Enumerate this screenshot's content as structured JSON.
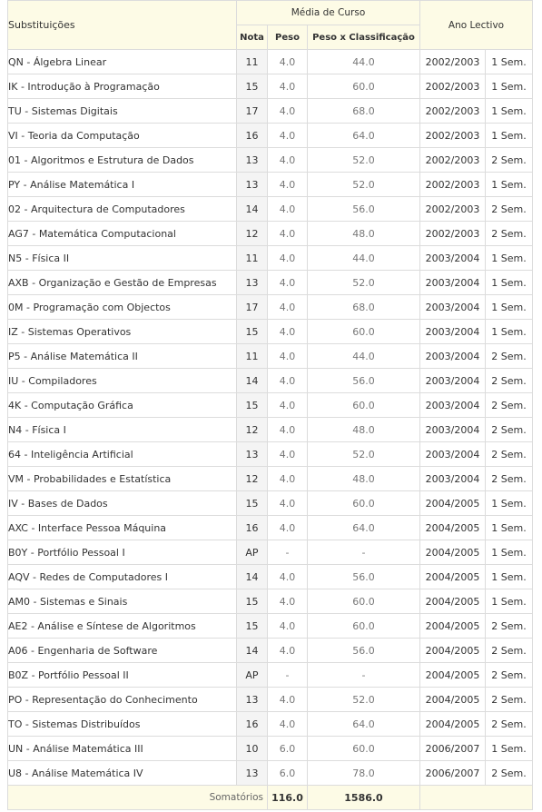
{
  "header": {
    "subjects": "Substituições",
    "course_avg": "Média de Curso",
    "grade": "Nota",
    "weight": "Peso",
    "weighted": "Peso x Classificação",
    "year": "Ano Lectivo"
  },
  "rows": [
    {
      "name": "QN - Álgebra Linear",
      "grade": "11",
      "weight": "4.0",
      "weighted": "44.0",
      "year": "2002/2003",
      "sem": "1 Sem."
    },
    {
      "name": "IK - Introdução à Programação",
      "grade": "15",
      "weight": "4.0",
      "weighted": "60.0",
      "year": "2002/2003",
      "sem": "1 Sem."
    },
    {
      "name": "TU - Sistemas Digitais",
      "grade": "17",
      "weight": "4.0",
      "weighted": "68.0",
      "year": "2002/2003",
      "sem": "1 Sem."
    },
    {
      "name": "VI - Teoria da Computação",
      "grade": "16",
      "weight": "4.0",
      "weighted": "64.0",
      "year": "2002/2003",
      "sem": "1 Sem."
    },
    {
      "name": "01 - Algoritmos e Estrutura de Dados",
      "grade": "13",
      "weight": "4.0",
      "weighted": "52.0",
      "year": "2002/2003",
      "sem": "2 Sem."
    },
    {
      "name": "PY - Análise Matemática I",
      "grade": "13",
      "weight": "4.0",
      "weighted": "52.0",
      "year": "2002/2003",
      "sem": "1 Sem."
    },
    {
      "name": "02 - Arquitectura de Computadores",
      "grade": "14",
      "weight": "4.0",
      "weighted": "56.0",
      "year": "2002/2003",
      "sem": "2 Sem."
    },
    {
      "name": "AG7 - Matemática Computacional",
      "grade": "12",
      "weight": "4.0",
      "weighted": "48.0",
      "year": "2002/2003",
      "sem": "2 Sem."
    },
    {
      "name": "N5 - Física II",
      "grade": "11",
      "weight": "4.0",
      "weighted": "44.0",
      "year": "2003/2004",
      "sem": "1 Sem."
    },
    {
      "name": "AXB - Organização e Gestão de Empresas",
      "grade": "13",
      "weight": "4.0",
      "weighted": "52.0",
      "year": "2003/2004",
      "sem": "1 Sem."
    },
    {
      "name": "0M - Programação com Objectos",
      "grade": "17",
      "weight": "4.0",
      "weighted": "68.0",
      "year": "2003/2004",
      "sem": "1 Sem."
    },
    {
      "name": "IZ - Sistemas Operativos",
      "grade": "15",
      "weight": "4.0",
      "weighted": "60.0",
      "year": "2003/2004",
      "sem": "1 Sem."
    },
    {
      "name": "P5 - Análise Matemática II",
      "grade": "11",
      "weight": "4.0",
      "weighted": "44.0",
      "year": "2003/2004",
      "sem": "2 Sem."
    },
    {
      "name": "IU - Compiladores",
      "grade": "14",
      "weight": "4.0",
      "weighted": "56.0",
      "year": "2003/2004",
      "sem": "2 Sem."
    },
    {
      "name": "4K - Computação Gráfica",
      "grade": "15",
      "weight": "4.0",
      "weighted": "60.0",
      "year": "2003/2004",
      "sem": "2 Sem."
    },
    {
      "name": "N4 - Física I",
      "grade": "12",
      "weight": "4.0",
      "weighted": "48.0",
      "year": "2003/2004",
      "sem": "2 Sem."
    },
    {
      "name": "64 - Inteligência Artificial",
      "grade": "13",
      "weight": "4.0",
      "weighted": "52.0",
      "year": "2003/2004",
      "sem": "2 Sem."
    },
    {
      "name": "VM - Probabilidades e Estatística",
      "grade": "12",
      "weight": "4.0",
      "weighted": "48.0",
      "year": "2003/2004",
      "sem": "2 Sem."
    },
    {
      "name": "IV - Bases de Dados",
      "grade": "15",
      "weight": "4.0",
      "weighted": "60.0",
      "year": "2004/2005",
      "sem": "1 Sem."
    },
    {
      "name": "AXC - Interface Pessoa Máquina",
      "grade": "16",
      "weight": "4.0",
      "weighted": "64.0",
      "year": "2004/2005",
      "sem": "1 Sem."
    },
    {
      "name": "B0Y - Portfólio Pessoal I",
      "grade": "AP",
      "weight": "-",
      "weighted": "-",
      "year": "2004/2005",
      "sem": "1 Sem."
    },
    {
      "name": "AQV - Redes de Computadores I",
      "grade": "14",
      "weight": "4.0",
      "weighted": "56.0",
      "year": "2004/2005",
      "sem": "1 Sem."
    },
    {
      "name": "AM0 - Sistemas e Sinais",
      "grade": "15",
      "weight": "4.0",
      "weighted": "60.0",
      "year": "2004/2005",
      "sem": "1 Sem."
    },
    {
      "name": "AE2 - Análise e Síntese de Algoritmos",
      "grade": "15",
      "weight": "4.0",
      "weighted": "60.0",
      "year": "2004/2005",
      "sem": "2 Sem."
    },
    {
      "name": "A06 - Engenharia de Software",
      "grade": "14",
      "weight": "4.0",
      "weighted": "56.0",
      "year": "2004/2005",
      "sem": "2 Sem."
    },
    {
      "name": "B0Z - Portfólio Pessoal II",
      "grade": "AP",
      "weight": "-",
      "weighted": "-",
      "year": "2004/2005",
      "sem": "2 Sem."
    },
    {
      "name": "PO - Representação do Conhecimento",
      "grade": "13",
      "weight": "4.0",
      "weighted": "52.0",
      "year": "2004/2005",
      "sem": "2 Sem."
    },
    {
      "name": "TO - Sistemas Distribuídos",
      "grade": "16",
      "weight": "4.0",
      "weighted": "64.0",
      "year": "2004/2005",
      "sem": "2 Sem."
    },
    {
      "name": "UN - Análise Matemática III",
      "grade": "10",
      "weight": "6.0",
      "weighted": "60.0",
      "year": "2006/2007",
      "sem": "1 Sem."
    },
    {
      "name": "U8 - Análise Matemática IV",
      "grade": "13",
      "weight": "6.0",
      "weighted": "78.0",
      "year": "2006/2007",
      "sem": "2 Sem."
    }
  ],
  "footer": {
    "label": "Somatórios",
    "weight_total": "116.0",
    "weighted_total": "1586.0"
  }
}
